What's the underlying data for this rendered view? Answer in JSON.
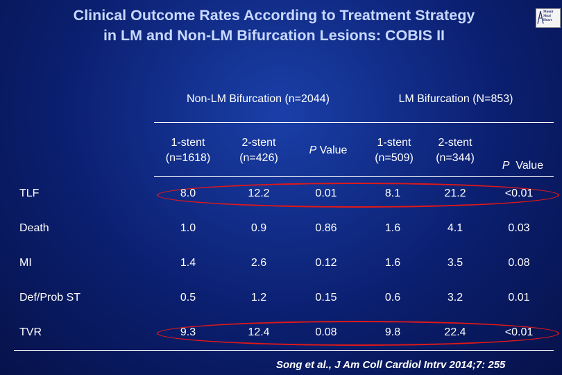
{
  "title": {
    "line1": "Clinical Outcome Rates According to Treatment Strategy",
    "line2": "in LM and Non-LM Bifurcation Lesions: COBIS II"
  },
  "logo": {
    "text": "Mount Sinai Heart",
    "icon": "hospital-logo-icon"
  },
  "groups": {
    "non_lm": "Non-LM Bifurcation (n=2044)",
    "lm": "LM Bifurcation (N=853)"
  },
  "columns": [
    {
      "line1": "1-stent",
      "line2": "(n=1618)"
    },
    {
      "line1": "2-stent",
      "line2": "(n=426)"
    },
    {
      "p_prefix": "P",
      "p_rest": " Value"
    },
    {
      "line1": "1-stent",
      "line2": "(n=509)"
    },
    {
      "line1": "2-stent",
      "line2": "(n=344)"
    },
    {
      "p_prefix": "P",
      "p_rest": "  Value"
    }
  ],
  "rows": [
    {
      "label": "TLF",
      "values": [
        "8.0",
        "12.2",
        "0.01",
        "8.1",
        "21.2",
        "<0.01"
      ],
      "highlighted": true
    },
    {
      "label": "Death",
      "values": [
        "1.0",
        "0.9",
        "0.86",
        "1.6",
        "4.1",
        "0.03"
      ],
      "highlighted": false
    },
    {
      "label": "MI",
      "values": [
        "1.4",
        "2.6",
        "0.12",
        "1.6",
        "3.5",
        "0.08"
      ],
      "highlighted": false
    },
    {
      "label": "Def/Prob ST",
      "values": [
        "0.5",
        "1.2",
        "0.15",
        "0.6",
        "3.2",
        "0.01"
      ],
      "highlighted": false
    },
    {
      "label": "TVR",
      "values": [
        "9.3",
        "12.4",
        "0.08",
        "9.8",
        "22.4",
        "<0.01"
      ],
      "highlighted": true
    }
  ],
  "citation": "Song et al., J Am Coll Cardiol Intrv 2014;7: 255",
  "colors": {
    "highlight_oval": "#e01818",
    "title": "#c8d8ff",
    "background": "#0b1f70"
  }
}
